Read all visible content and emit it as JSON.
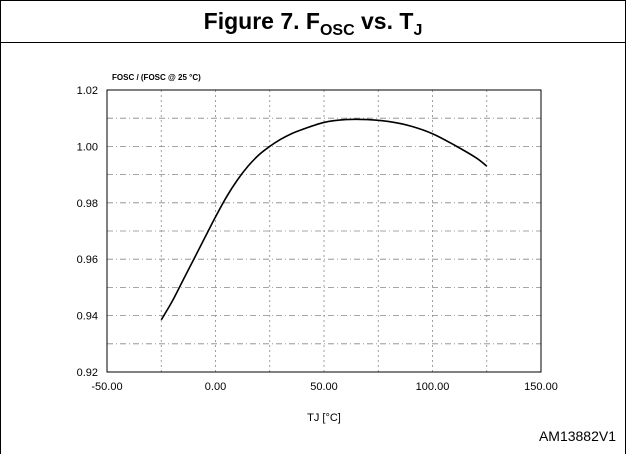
{
  "title": {
    "text": "Figure 7. F",
    "sub1": "OSC",
    "mid": " vs. T",
    "sub2": "J"
  },
  "reference": "AM13882V1",
  "chart_data": {
    "type": "line",
    "title": "Figure 7. FOSC vs. TJ",
    "ylabel": "FOSC / (FOSC @ 25 °C)",
    "xlabel": "TJ [°C]",
    "xlim": [
      -50,
      150
    ],
    "ylim": [
      0.92,
      1.02
    ],
    "x_ticks": [
      -50,
      0,
      50,
      100,
      150
    ],
    "x_tick_labels": [
      "-50.00",
      "0.00",
      "50.00",
      "100.00",
      "150.00"
    ],
    "y_ticks": [
      0.92,
      0.94,
      0.96,
      0.98,
      1.0,
      1.02
    ],
    "y_tick_labels": [
      "0.92",
      "0.94",
      "0.96",
      "0.98",
      "1.00",
      "1.02"
    ],
    "grid": true,
    "series": [
      {
        "color": "#000000",
        "x": [
          -25,
          -20,
          -15,
          -10,
          -5,
          0,
          5,
          10,
          15,
          20,
          25,
          30,
          35,
          40,
          50,
          60,
          70,
          80,
          90,
          100,
          110,
          120,
          125
        ],
        "y": [
          0.9385,
          0.945,
          0.9525,
          0.96,
          0.9675,
          0.975,
          0.982,
          0.988,
          0.993,
          0.997,
          1.0,
          1.0025,
          1.0045,
          1.006,
          1.0085,
          1.0095,
          1.0095,
          1.0088,
          1.0072,
          1.0045,
          1.0005,
          0.996,
          0.993
        ]
      }
    ]
  }
}
